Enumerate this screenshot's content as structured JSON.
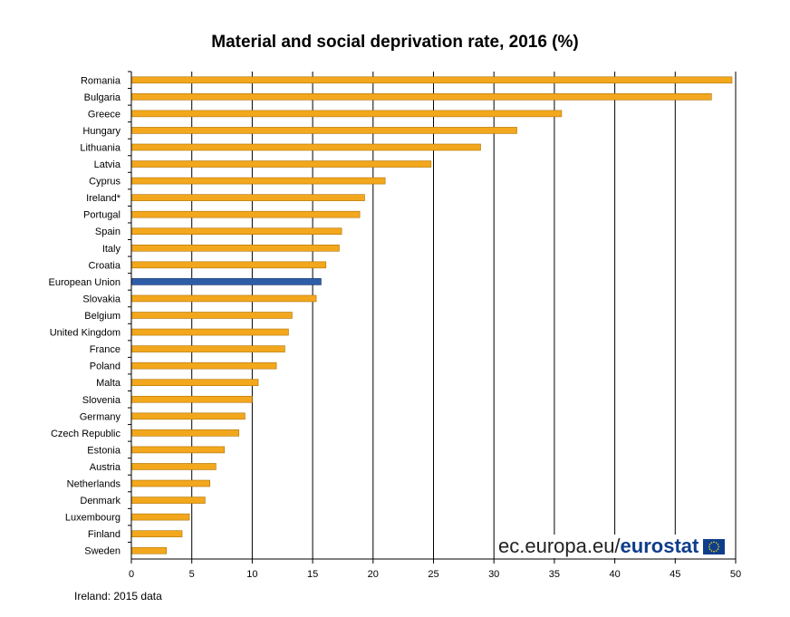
{
  "chart_data": {
    "type": "bar",
    "orientation": "horizontal",
    "title": "Material and social deprivation rate, 2016 (%)",
    "categories": [
      "Romania",
      "Bulgaria",
      "Greece",
      "Hungary",
      "Lithuania",
      "Latvia",
      "Cyprus",
      "Ireland*",
      "Portugal",
      "Spain",
      "Italy",
      "Croatia",
      "European Union",
      "Slovakia",
      "Belgium",
      "United Kingdom",
      "France",
      "Poland",
      "Malta",
      "Slovenia",
      "Germany",
      "Czech Republic",
      "Estonia",
      "Austria",
      "Netherlands",
      "Denmark",
      "Luxembourg",
      "Finland",
      "Sweden"
    ],
    "values": [
      49.7,
      48.0,
      35.6,
      31.9,
      28.9,
      24.8,
      21.0,
      19.3,
      18.9,
      17.4,
      17.2,
      16.1,
      15.7,
      15.3,
      13.3,
      13.0,
      12.7,
      12.0,
      10.5,
      10.0,
      9.4,
      8.9,
      7.7,
      7.0,
      6.5,
      6.1,
      4.8,
      4.2,
      2.9
    ],
    "highlight_category": "European Union",
    "xlim": [
      0,
      50
    ],
    "xticks": [
      0,
      5,
      10,
      15,
      20,
      25,
      30,
      35,
      40,
      45,
      50
    ],
    "grid": true,
    "colors": {
      "bar": "#F2A71D",
      "bar_edge": "#B07405",
      "highlight": "#2E5DA8",
      "highlight_edge": "#0F2E66",
      "grid": "#000000"
    }
  },
  "footnote": "Ireland: 2015 data",
  "logo": {
    "text_light": "ec.europa.eu/",
    "text_bold": "eurostat",
    "flag_color": "#0E3D8C",
    "star_color": "#FFDD00"
  }
}
